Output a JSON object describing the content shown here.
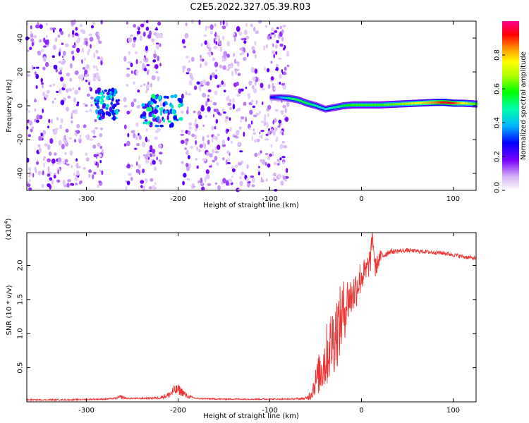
{
  "title": "C2E5.2022.327.05.39.R03",
  "chart_data": [
    {
      "type": "heatmap",
      "xlabel": "Height of straight line (km)",
      "ylabel": "Frequency (Hz)",
      "xlim": [
        -365,
        125
      ],
      "ylim": [
        -50,
        50
      ],
      "x_ticks": [
        -300,
        -200,
        -100,
        0,
        100
      ],
      "x_tick_labels": [
        "-300",
        "-200",
        "-100",
        "0",
        "100"
      ],
      "y_ticks": [
        -40,
        -20,
        0,
        20,
        40
      ],
      "y_tick_labels": [
        "-40",
        "-20",
        "0",
        "20",
        "40"
      ],
      "colorbar": {
        "label": "Normalized spectral amplitude",
        "range": [
          0,
          1
        ],
        "ticks": [
          0.0,
          0.2,
          0.4,
          0.6,
          0.8
        ],
        "tick_labels": [
          "0.0",
          "0.2",
          "0.4",
          "0.6",
          "0.8"
        ]
      },
      "noise_segments": [
        [
          -365,
          -282
        ],
        [
          -258,
          -218
        ],
        [
          -196,
          -80
        ]
      ],
      "signal_trace": {
        "x": [
          -100,
          -90,
          -80,
          -70,
          -60,
          -50,
          -40,
          -30,
          -20,
          -10,
          0,
          10,
          20,
          40,
          60,
          80,
          90,
          100,
          110,
          125
        ],
        "y": [
          5,
          5,
          4.5,
          3.5,
          1.5,
          0,
          -2,
          -1,
          0,
          0.5,
          0.5,
          0.5,
          0.5,
          1,
          1.5,
          2,
          2,
          1.5,
          1.5,
          1
        ],
        "amplitude": [
          0.25,
          0.35,
          0.5,
          0.55,
          0.55,
          0.5,
          0.45,
          0.5,
          0.55,
          0.6,
          0.6,
          0.6,
          0.6,
          0.65,
          0.75,
          0.85,
          0.95,
          0.9,
          0.75,
          0.6
        ]
      },
      "clusters": [
        {
          "x": [
            -290,
            -265
          ],
          "y": [
            -8,
            10
          ],
          "amplitude": 0.3
        },
        {
          "x": [
            -240,
            -195
          ],
          "y": [
            -12,
            6
          ],
          "amplitude": 0.35
        }
      ]
    },
    {
      "type": "line",
      "xlabel": "Height of straight line (km)",
      "ylabel": "SNR (10 * v/v)",
      "multiplier_label": "(x10",
      "multiplier_exp": "4",
      "multiplier_close": ")",
      "xlim": [
        -365,
        125
      ],
      "ylim": [
        0,
        2.48
      ],
      "x_ticks": [
        -300,
        -200,
        -100,
        0,
        100
      ],
      "x_tick_labels": [
        "-300",
        "-200",
        "-100",
        "0",
        "100"
      ],
      "y_ticks": [
        0.5,
        1.0,
        1.5,
        2.0
      ],
      "y_tick_labels": [
        "0.5",
        "1.0",
        "1.5",
        "2.0"
      ],
      "color": "#ee3333",
      "series": [
        {
          "x": [
            -365,
            -320,
            -280,
            -270,
            -262,
            -255,
            -240,
            -220,
            -210,
            -205,
            -200,
            -195,
            -190,
            -180,
            -150,
            -120,
            -100,
            -80,
            -60,
            -55,
            -50,
            -45,
            -40,
            -35,
            -30,
            -25,
            -20,
            -15,
            -10,
            -5,
            0,
            5,
            10,
            12,
            15,
            20,
            30,
            50,
            70,
            90,
            110,
            125
          ],
          "y": [
            0.03,
            0.03,
            0.04,
            0.05,
            0.07,
            0.05,
            0.05,
            0.06,
            0.1,
            0.16,
            0.18,
            0.14,
            0.08,
            0.05,
            0.04,
            0.04,
            0.04,
            0.04,
            0.05,
            0.12,
            0.3,
            0.45,
            0.6,
            0.8,
            0.95,
            1.1,
            1.3,
            1.5,
            1.55,
            1.7,
            1.85,
            1.9,
            2.1,
            2.45,
            1.95,
            2.12,
            2.2,
            2.22,
            2.2,
            2.18,
            2.13,
            2.1
          ],
          "noise_amplitude": [
            0.01,
            0.01,
            0.01,
            0.01,
            0.03,
            0.01,
            0.01,
            0.02,
            0.05,
            0.08,
            0.08,
            0.06,
            0.03,
            0.01,
            0.01,
            0.01,
            0.01,
            0.01,
            0.02,
            0.1,
            0.2,
            0.35,
            0.45,
            0.5,
            0.55,
            0.55,
            0.5,
            0.35,
            0.3,
            0.3,
            0.25,
            0.2,
            0.2,
            0.1,
            0.15,
            0.1,
            0.04,
            0.03,
            0.03,
            0.03,
            0.03,
            0.03
          ]
        }
      ]
    }
  ]
}
